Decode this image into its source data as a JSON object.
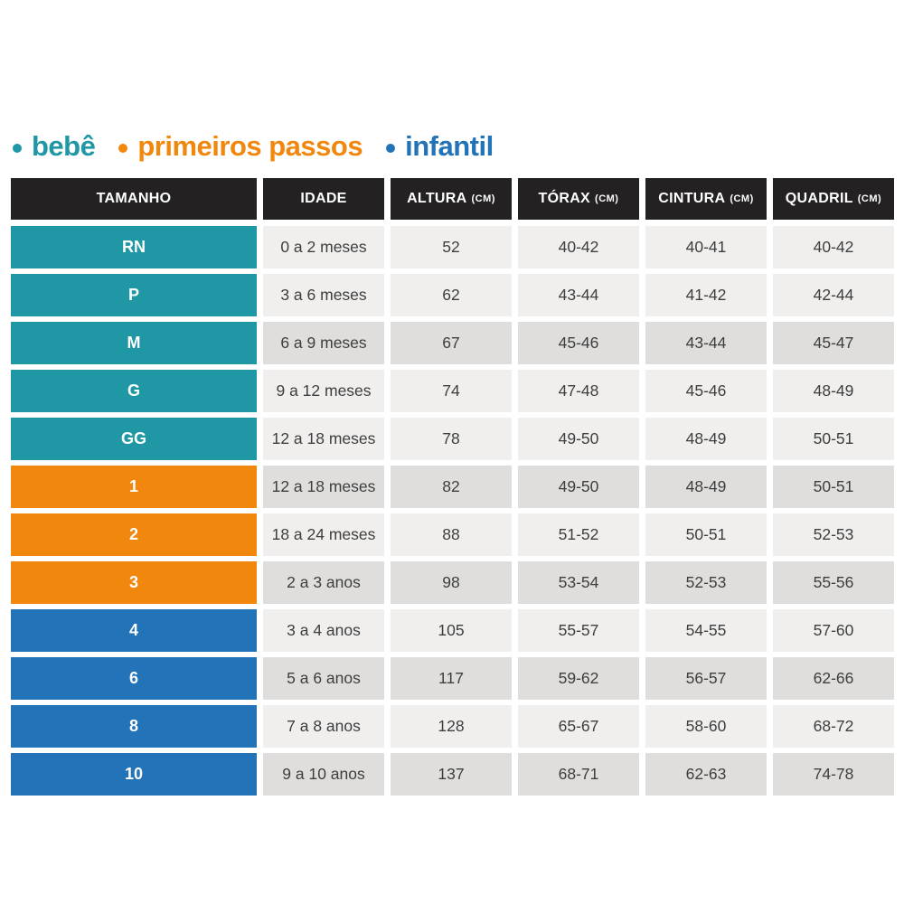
{
  "chart_data": {
    "type": "table",
    "legend": [
      {
        "label": "bebê",
        "group": "bebe",
        "color": "#1f97a4"
      },
      {
        "label": "primeiros passos",
        "group": "primeiros-passos",
        "color": "#f1870d"
      },
      {
        "label": "infantil",
        "group": "infantil",
        "color": "#2273b7"
      }
    ],
    "columns": [
      {
        "label": "TAMANHO",
        "unit": ""
      },
      {
        "label": "IDADE",
        "unit": ""
      },
      {
        "label": "ALTURA",
        "unit": "(CM)"
      },
      {
        "label": "TÓRAX",
        "unit": "(CM)"
      },
      {
        "label": "CINTURA",
        "unit": "(CM)"
      },
      {
        "label": "QUADRIL",
        "unit": "(CM)"
      }
    ],
    "rows": [
      {
        "size": "RN",
        "group": "bebe",
        "shaded": false,
        "cells": [
          "0 a 2 meses",
          "52",
          "40-42",
          "40-41",
          "40-42"
        ]
      },
      {
        "size": "P",
        "group": "bebe",
        "shaded": false,
        "cells": [
          "3 a 6 meses",
          "62",
          "43-44",
          "41-42",
          "42-44"
        ]
      },
      {
        "size": "M",
        "group": "bebe",
        "shaded": true,
        "cells": [
          "6 a 9 meses",
          "67",
          "45-46",
          "43-44",
          "45-47"
        ]
      },
      {
        "size": "G",
        "group": "bebe",
        "shaded": false,
        "cells": [
          "9 a 12 meses",
          "74",
          "47-48",
          "45-46",
          "48-49"
        ]
      },
      {
        "size": "GG",
        "group": "bebe",
        "shaded": false,
        "cells": [
          "12 a 18 meses",
          "78",
          "49-50",
          "48-49",
          "50-51"
        ]
      },
      {
        "size": "1",
        "group": "primeiros-passos",
        "shaded": true,
        "cells": [
          "12 a 18 meses",
          "82",
          "49-50",
          "48-49",
          "50-51"
        ]
      },
      {
        "size": "2",
        "group": "primeiros-passos",
        "shaded": false,
        "cells": [
          "18 a 24 meses",
          "88",
          "51-52",
          "50-51",
          "52-53"
        ]
      },
      {
        "size": "3",
        "group": "primeiros-passos",
        "shaded": true,
        "cells": [
          "2 a 3 anos",
          "98",
          "53-54",
          "52-53",
          "55-56"
        ]
      },
      {
        "size": "4",
        "group": "infantil",
        "shaded": false,
        "cells": [
          "3 a 4 anos",
          "105",
          "55-57",
          "54-55",
          "57-60"
        ]
      },
      {
        "size": "6",
        "group": "infantil",
        "shaded": true,
        "cells": [
          "5 a 6 anos",
          "117",
          "59-62",
          "56-57",
          "62-66"
        ]
      },
      {
        "size": "8",
        "group": "infantil",
        "shaded": false,
        "cells": [
          "7 a 8 anos",
          "128",
          "65-67",
          "58-60",
          "68-72"
        ]
      },
      {
        "size": "10",
        "group": "infantil",
        "shaded": true,
        "cells": [
          "9 a 10 anos",
          "137",
          "68-71",
          "62-63",
          "74-78"
        ]
      }
    ]
  },
  "colors": {
    "bebe_teal": "#1f97a4",
    "primeiros_passos_orange": "#f1870d",
    "infantil_blue": "#2273b7",
    "header_bg": "#242122",
    "header_text": "#ffffff",
    "cell_bg": "#f0efee",
    "cell_bg_shaded": "#dfdedc",
    "cell_text": "#3e3e3e",
    "background": "#ffffff"
  }
}
